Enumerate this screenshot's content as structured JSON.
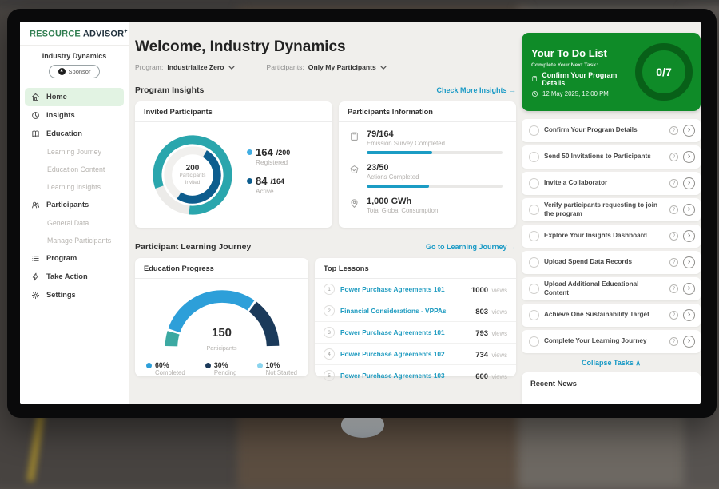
{
  "colors": {
    "brand_green": "#0F8B28",
    "ring_dark_green": "#086018",
    "teal": "#2AA6AD",
    "dark_blue": "#0D5D8E",
    "light_blue_dot": "#41AEE3",
    "gauge_blue": "#2D9FD9",
    "gauge_navy": "#1B3A5A",
    "gauge_teal": "#3CA9A2",
    "not_started_dot": "#8AD4EE",
    "link_teal": "#1799C5",
    "bar_fill": "#1B9CC4",
    "active_nav_bg": "#E2F3E3"
  },
  "icons": {
    "arrow_right": "→",
    "chevron_up": "∧",
    "chevron_right": "›",
    "question": "?",
    "sponsor_glyph": "★"
  },
  "brand": {
    "name_primary": "RESOURCE",
    "name_secondary": "ADVISOR",
    "plus": "+"
  },
  "sidebar": {
    "org": "Industry Dynamics",
    "badge": "Sponsor",
    "items": [
      {
        "label": "Home"
      },
      {
        "label": "Insights"
      },
      {
        "label": "Education"
      },
      {
        "label": "Learning Journey"
      },
      {
        "label": "Education Content"
      },
      {
        "label": "Learning Insights"
      },
      {
        "label": "Participants"
      },
      {
        "label": "General Data"
      },
      {
        "label": "Manage Participants"
      },
      {
        "label": "Program"
      },
      {
        "label": "Take Action"
      },
      {
        "label": "Settings"
      }
    ]
  },
  "header": {
    "welcome": "Welcome, Industry Dynamics",
    "program_label": "Program:",
    "program_value": "Industrialize Zero",
    "participants_label": "Participants:",
    "participants_value": "Only My Participants"
  },
  "sections": {
    "program_insights": "Program Insights",
    "insights_link": "Check More Insights",
    "learning_journey": "Participant Learning Journey",
    "learning_link": "Go to Learning Journey"
  },
  "invited_card": {
    "title": "Invited Participants",
    "center_value": "200",
    "center_label_1": "Participants",
    "center_label_2": "Invited",
    "legend": [
      {
        "value": "164",
        "total": "/200",
        "label": "Registered"
      },
      {
        "value": "84",
        "total": "/164",
        "label": "Active"
      }
    ]
  },
  "info_card": {
    "title": "Participants Information",
    "rows": [
      {
        "value": "79/164",
        "label": "Emission Survey Completed"
      },
      {
        "value": "23/50",
        "label": "Actions Completed"
      },
      {
        "value": "1,000 GWh",
        "label": "Total Global Consumption"
      }
    ]
  },
  "education_card": {
    "title": "Education Progress",
    "center_value": "150",
    "center_label": "Participants",
    "legend": [
      {
        "pct": "60%",
        "label": "Completed"
      },
      {
        "pct": "30%",
        "label": "Pending"
      },
      {
        "pct": "10%",
        "label": "Not Started"
      }
    ]
  },
  "lessons_card": {
    "title": "Top Lessons",
    "views_word": "views",
    "rows": [
      {
        "rank": "1",
        "title": "Power Purchase Agreements 101",
        "views": "1000"
      },
      {
        "rank": "2",
        "title": "Financial Considerations - VPPAs",
        "views": "803"
      },
      {
        "rank": "3",
        "title": "Power Purchase Agreements 101",
        "views": "793"
      },
      {
        "rank": "4",
        "title": "Power Purchase Agreements 102",
        "views": "734"
      },
      {
        "rank": "5",
        "title": "Power Purchase Agreements 103",
        "views": "600"
      }
    ]
  },
  "todo": {
    "title": "Your To Do List",
    "subtitle": "Complete Your Next Task:",
    "next_task": "Confirm Your Program Details",
    "datetime": "12 May 2025, 12:00 PM",
    "progress": "0/7",
    "items": [
      {
        "label": "Confirm Your Program Details"
      },
      {
        "label": "Send 50 Invitations to Participants"
      },
      {
        "label": "Invite a Collaborator"
      },
      {
        "label": "Verify participants requesting to join the program"
      },
      {
        "label": "Explore Your Insights Dashboard"
      },
      {
        "label": "Upload Spend Data Records"
      },
      {
        "label": "Upload Additional Educational Content"
      },
      {
        "label": "Achieve One Sustainability Target"
      },
      {
        "label": "Complete Your Learning Journey"
      }
    ],
    "collapse": "Collapse Tasks"
  },
  "news": {
    "title": "Recent News"
  },
  "chart_data": [
    {
      "type": "pie",
      "subtype": "double-ring-donut",
      "title": "Invited Participants",
      "center_value": 200,
      "center_label": "Participants Invited",
      "rings": [
        {
          "name": "Registered",
          "value": 164,
          "total": 200,
          "color": "#2AA6AD"
        },
        {
          "name": "Active",
          "value": 84,
          "total": 164,
          "color": "#0D5D8E"
        }
      ],
      "legend_position": "right"
    },
    {
      "type": "pie",
      "subtype": "half-gauge",
      "title": "Education Progress",
      "center_value": 150,
      "center_label": "Participants",
      "segments": [
        {
          "label": "Not Started",
          "pct": 10,
          "color": "#3CA9A2"
        },
        {
          "label": "Completed",
          "pct": 60,
          "color": "#2D9FD9"
        },
        {
          "label": "Pending",
          "pct": 30,
          "color": "#1B3A5A"
        }
      ],
      "legend_position": "bottom"
    },
    {
      "type": "bar",
      "subtype": "progress-bars",
      "title": "Participants Information",
      "bars": [
        {
          "label": "Emission Survey Completed",
          "value": 79,
          "total": 164
        },
        {
          "label": "Actions Completed",
          "value": 23,
          "total": 50
        }
      ],
      "color": "#1B9CC4"
    },
    {
      "type": "table",
      "title": "Top Lessons",
      "columns": [
        "rank",
        "lesson",
        "views"
      ],
      "rows": [
        [
          1,
          "Power Purchase Agreements 101",
          1000
        ],
        [
          2,
          "Financial Considerations - VPPAs",
          803
        ],
        [
          3,
          "Power Purchase Agreements 101",
          793
        ],
        [
          4,
          "Power Purchase Agreements 102",
          734
        ],
        [
          5,
          "Power Purchase Agreements 103",
          600
        ]
      ]
    }
  ]
}
